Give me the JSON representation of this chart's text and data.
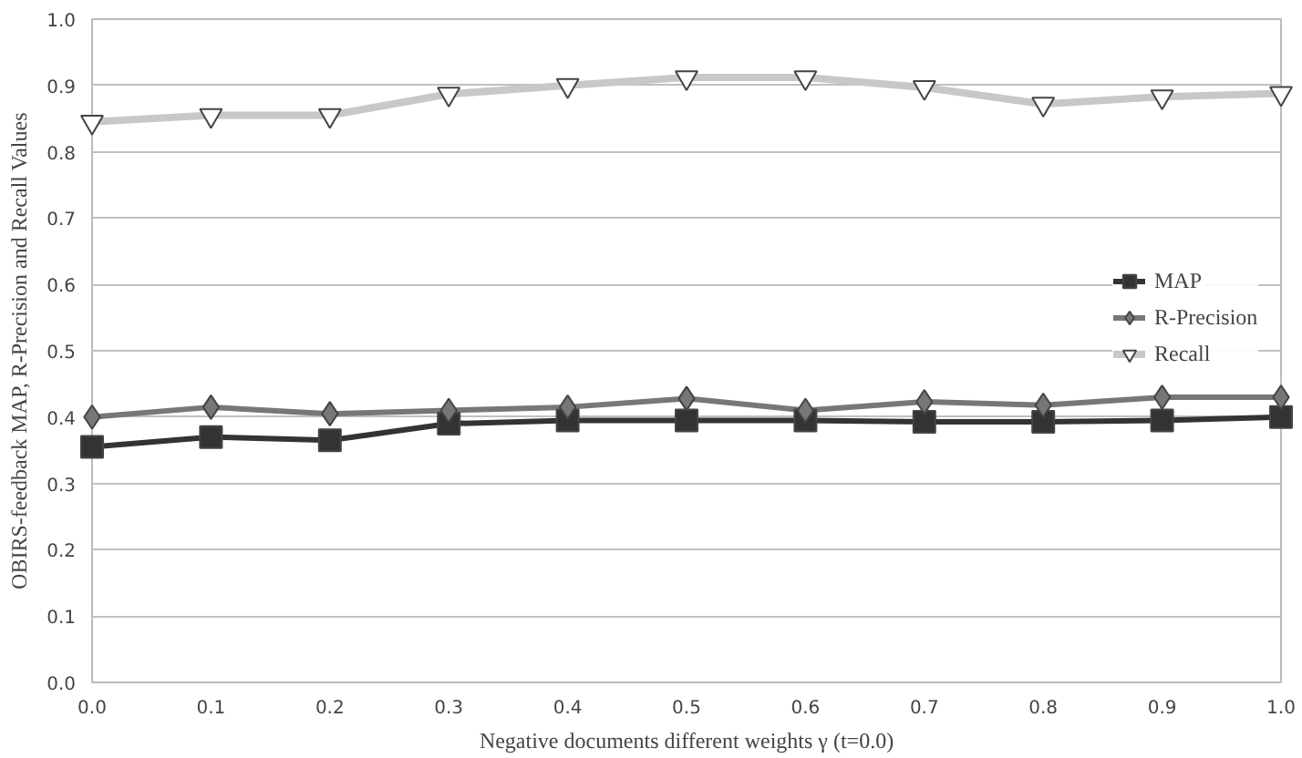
{
  "chart_data": {
    "type": "line",
    "xlabel": "Negative documents different weights γ (t=0.0)",
    "ylabel": "OBIRS-feedback MAP, R-Precision and Recall Values",
    "x": [
      0.0,
      0.1,
      0.2,
      0.3,
      0.4,
      0.5,
      0.6,
      0.7,
      0.8,
      0.9,
      1.0
    ],
    "xlim": [
      0.0,
      1.0
    ],
    "xticks": [
      {
        "value": 0,
        "label": "0.0"
      },
      0.1,
      0.2,
      0.3,
      0.4,
      0.5,
      0.6,
      0.7,
      0.8,
      0.9,
      {
        "value": 1,
        "label": "1.0"
      }
    ],
    "ylim": [
      0.0,
      1.0
    ],
    "yticks": [
      {
        "value": 0,
        "label": "0.0"
      },
      0.1,
      0.2,
      0.3,
      0.4,
      0.5,
      0.6,
      0.7,
      0.8,
      0.9,
      {
        "value": 1,
        "label": "1.0"
      }
    ],
    "grid": "y",
    "legend": "right",
    "line_style": "solid",
    "series": [
      {
        "name": "MAP",
        "color": "#333333",
        "marker": "square",
        "values": [
          0.355,
          0.37,
          0.365,
          0.39,
          0.395,
          0.395,
          0.395,
          0.393,
          0.393,
          0.395,
          0.4
        ]
      },
      {
        "name": "R-Precision",
        "color": "#777777",
        "marker": "diamond",
        "values": [
          0.4,
          0.415,
          0.405,
          0.41,
          0.415,
          0.428,
          0.41,
          0.423,
          0.418,
          0.43,
          0.43
        ]
      },
      {
        "name": "Recall",
        "color": "#c8c8c8",
        "marker": "triangle",
        "values": [
          0.845,
          0.855,
          0.855,
          0.887,
          0.9,
          0.912,
          0.912,
          0.897,
          0.872,
          0.883,
          0.888
        ]
      }
    ]
  }
}
